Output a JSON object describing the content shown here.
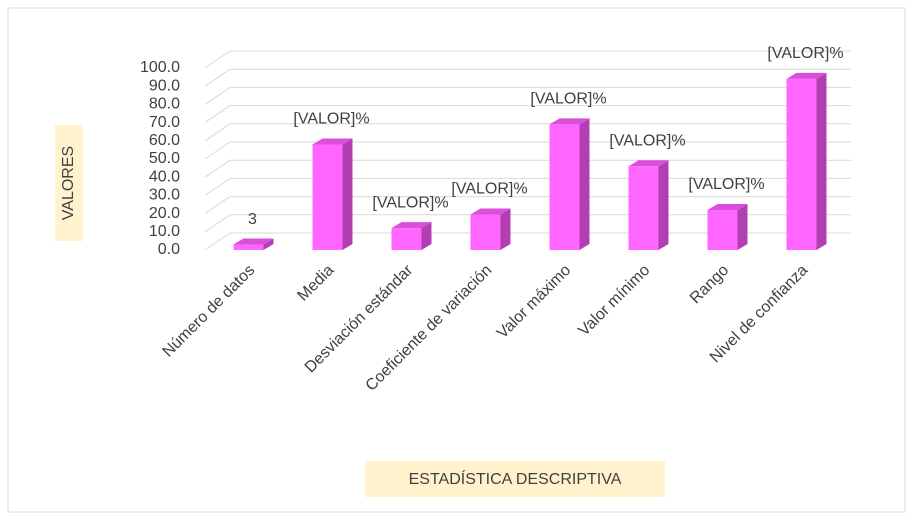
{
  "chart_data": {
    "type": "bar3d",
    "xlabel": "ESTADÍSTICA DESCRIPTIVA",
    "ylabel": "VALORES",
    "categories": [
      "Número de datos",
      "Media",
      "Desviación estándar",
      "Coeficiente de variación",
      "Valor máximo",
      "Valor mínimo",
      "Rango",
      "Nivel de confianza"
    ],
    "values": [
      3,
      58,
      12,
      19.5,
      69,
      46,
      22,
      94
    ],
    "value_labels": [
      "3",
      "[VALOR]%",
      "[VALOR]%",
      "[VALOR]%",
      "[VALOR]%",
      "[VALOR]%",
      "[VALOR]%",
      "[VALOR]%"
    ],
    "color": "#ff66ff",
    "ylim": [
      0,
      100
    ],
    "yticks": [
      {
        "value": 0,
        "label": "0.0"
      },
      {
        "value": 10,
        "label": "10.0"
      },
      {
        "value": 20,
        "label": "20.0"
      },
      {
        "value": 30,
        "label": "30.0"
      },
      {
        "value": 40,
        "label": "40.0"
      },
      {
        "value": 50,
        "label": "50.0"
      },
      {
        "value": 60,
        "label": "60.0"
      },
      {
        "value": 70,
        "label": "70.0"
      },
      {
        "value": 80,
        "label": "80.0"
      },
      {
        "value": 90,
        "label": "90.0"
      },
      {
        "value": 100,
        "label": "100.0"
      }
    ],
    "grid": true
  }
}
